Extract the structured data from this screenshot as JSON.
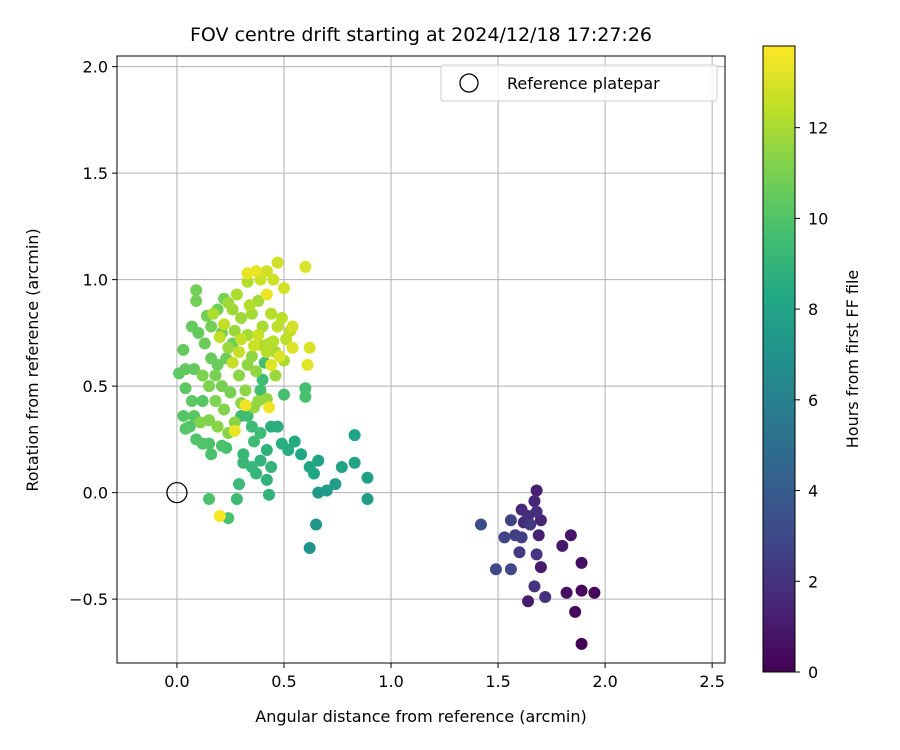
{
  "chart_data": {
    "type": "scatter",
    "title": "FOV centre drift starting at 2024/12/18 17:27:26",
    "xlabel": "Angular distance from reference (arcmin)",
    "ylabel": "Rotation from reference (arcmin)",
    "xlim": [
      -0.28,
      2.56
    ],
    "ylim": [
      -0.8,
      2.05
    ],
    "xticks": [
      0.0,
      0.5,
      1.0,
      1.5,
      2.0,
      2.5
    ],
    "xtick_labels": [
      "0.0",
      "0.5",
      "1.0",
      "1.5",
      "2.0",
      "2.5"
    ],
    "yticks": [
      -0.5,
      0.0,
      0.5,
      1.0,
      1.5,
      2.0
    ],
    "ytick_labels": [
      "−0.5",
      "0.0",
      "0.5",
      "1.0",
      "1.5",
      "2.0"
    ],
    "grid": true,
    "legend": {
      "position": "top-right",
      "entries": [
        "Reference platepar"
      ]
    },
    "reference_point": {
      "x": 0.0,
      "y": 0.0,
      "label": "Reference platepar"
    },
    "colorbar": {
      "label": "Hours from first FF file",
      "colormap": "viridis",
      "range": [
        0,
        13.8
      ],
      "ticks": [
        0,
        2,
        4,
        6,
        8,
        10,
        12
      ],
      "tick_labels": [
        "0",
        "2",
        "4",
        "6",
        "8",
        "10",
        "12"
      ]
    },
    "points": [
      {
        "x": 1.89,
        "y": -0.71,
        "h": 0.1
      },
      {
        "x": 1.95,
        "y": -0.47,
        "h": 0.2
      },
      {
        "x": 1.89,
        "y": -0.46,
        "h": 0.3
      },
      {
        "x": 1.86,
        "y": -0.56,
        "h": 0.4
      },
      {
        "x": 1.82,
        "y": -0.47,
        "h": 0.5
      },
      {
        "x": 1.89,
        "y": -0.33,
        "h": 0.6
      },
      {
        "x": 1.84,
        "y": -0.2,
        "h": 0.8
      },
      {
        "x": 1.8,
        "y": -0.25,
        "h": 0.9
      },
      {
        "x": 1.7,
        "y": -0.35,
        "h": 1.0
      },
      {
        "x": 1.64,
        "y": -0.51,
        "h": 1.1
      },
      {
        "x": 1.68,
        "y": 0.01,
        "h": 1.2
      },
      {
        "x": 1.69,
        "y": -0.2,
        "h": 1.3
      },
      {
        "x": 1.7,
        "y": -0.13,
        "h": 1.4
      },
      {
        "x": 1.67,
        "y": -0.04,
        "h": 1.5
      },
      {
        "x": 1.61,
        "y": -0.08,
        "h": 1.6
      },
      {
        "x": 1.62,
        "y": -0.14,
        "h": 1.7
      },
      {
        "x": 1.64,
        "y": -0.11,
        "h": 1.8
      },
      {
        "x": 1.68,
        "y": -0.09,
        "h": 1.9
      },
      {
        "x": 1.72,
        "y": -0.49,
        "h": 2.0
      },
      {
        "x": 1.67,
        "y": -0.44,
        "h": 2.1
      },
      {
        "x": 1.68,
        "y": -0.29,
        "h": 2.2
      },
      {
        "x": 1.65,
        "y": -0.15,
        "h": 2.3
      },
      {
        "x": 1.6,
        "y": -0.28,
        "h": 2.4
      },
      {
        "x": 1.58,
        "y": -0.2,
        "h": 2.5
      },
      {
        "x": 1.61,
        "y": -0.21,
        "h": 2.6
      },
      {
        "x": 1.56,
        "y": -0.13,
        "h": 2.7
      },
      {
        "x": 1.53,
        "y": -0.21,
        "h": 2.8
      },
      {
        "x": 1.56,
        "y": -0.36,
        "h": 2.9
      },
      {
        "x": 1.49,
        "y": -0.36,
        "h": 3.0
      },
      {
        "x": 1.42,
        "y": -0.15,
        "h": 3.2
      },
      {
        "x": 0.62,
        "y": -0.26,
        "h": 7.0
      },
      {
        "x": 0.65,
        "y": -0.15,
        "h": 7.2
      },
      {
        "x": 0.66,
        "y": 0.0,
        "h": 7.4
      },
      {
        "x": 0.7,
        "y": 0.01,
        "h": 7.5
      },
      {
        "x": 0.74,
        "y": 0.04,
        "h": 7.6
      },
      {
        "x": 0.89,
        "y": -0.03,
        "h": 7.7
      },
      {
        "x": 0.89,
        "y": 0.07,
        "h": 7.8
      },
      {
        "x": 0.83,
        "y": 0.14,
        "h": 7.9
      },
      {
        "x": 0.83,
        "y": 0.27,
        "h": 7.9
      },
      {
        "x": 0.77,
        "y": 0.12,
        "h": 8.0
      },
      {
        "x": 0.66,
        "y": 0.15,
        "h": 8.0
      },
      {
        "x": 0.62,
        "y": 0.12,
        "h": 8.1
      },
      {
        "x": 0.64,
        "y": 0.09,
        "h": 8.2
      },
      {
        "x": 0.58,
        "y": 0.18,
        "h": 8.3
      },
      {
        "x": 0.55,
        "y": 0.24,
        "h": 8.4
      },
      {
        "x": 0.52,
        "y": 0.2,
        "h": 8.5
      },
      {
        "x": 0.49,
        "y": 0.23,
        "h": 8.6
      },
      {
        "x": 0.47,
        "y": 0.31,
        "h": 8.6
      },
      {
        "x": 0.44,
        "y": 0.31,
        "h": 8.7
      },
      {
        "x": 0.42,
        "y": 0.2,
        "h": 8.8
      },
      {
        "x": 0.42,
        "y": 0.06,
        "h": 8.9
      },
      {
        "x": 0.43,
        "y": -0.01,
        "h": 8.9
      },
      {
        "x": 0.44,
        "y": 0.12,
        "h": 9.0
      },
      {
        "x": 0.39,
        "y": 0.15,
        "h": 9.0
      },
      {
        "x": 0.37,
        "y": 0.09,
        "h": 9.1
      },
      {
        "x": 0.35,
        "y": 0.12,
        "h": 9.1
      },
      {
        "x": 0.31,
        "y": 0.14,
        "h": 9.2
      },
      {
        "x": 0.31,
        "y": 0.18,
        "h": 9.2
      },
      {
        "x": 0.29,
        "y": 0.04,
        "h": 9.3
      },
      {
        "x": 0.28,
        "y": -0.03,
        "h": 9.3
      },
      {
        "x": 0.36,
        "y": 0.24,
        "h": 9.4
      },
      {
        "x": 0.39,
        "y": 0.28,
        "h": 9.4
      },
      {
        "x": 0.35,
        "y": 0.31,
        "h": 9.4
      },
      {
        "x": 0.33,
        "y": 0.36,
        "h": 9.5
      },
      {
        "x": 0.3,
        "y": 0.36,
        "h": 9.5
      },
      {
        "x": 0.4,
        "y": 0.53,
        "h": 9.5
      },
      {
        "x": 0.41,
        "y": 0.61,
        "h": 9.6
      },
      {
        "x": 0.39,
        "y": 0.48,
        "h": 9.6
      },
      {
        "x": 0.6,
        "y": 0.49,
        "h": 9.6
      },
      {
        "x": 0.6,
        "y": 0.45,
        "h": 9.7
      },
      {
        "x": 0.5,
        "y": 0.46,
        "h": 9.7
      },
      {
        "x": 0.23,
        "y": 0.21,
        "h": 9.7
      },
      {
        "x": 0.24,
        "y": -0.12,
        "h": 9.8
      },
      {
        "x": 0.21,
        "y": 0.22,
        "h": 9.8
      },
      {
        "x": 0.16,
        "y": 0.18,
        "h": 9.8
      },
      {
        "x": 0.15,
        "y": -0.03,
        "h": 9.9
      },
      {
        "x": 0.15,
        "y": 0.23,
        "h": 9.9
      },
      {
        "x": 0.12,
        "y": 0.23,
        "h": 10.0
      },
      {
        "x": 0.09,
        "y": 0.25,
        "h": 10.0
      },
      {
        "x": 0.06,
        "y": 0.31,
        "h": 10.0
      },
      {
        "x": 0.04,
        "y": 0.3,
        "h": 10.1
      },
      {
        "x": 0.03,
        "y": 0.36,
        "h": 10.1
      },
      {
        "x": 0.08,
        "y": 0.36,
        "h": 10.2
      },
      {
        "x": 0.12,
        "y": 0.43,
        "h": 10.2
      },
      {
        "x": 0.07,
        "y": 0.43,
        "h": 10.3
      },
      {
        "x": 0.04,
        "y": 0.49,
        "h": 10.3
      },
      {
        "x": 0.01,
        "y": 0.56,
        "h": 10.3
      },
      {
        "x": 0.04,
        "y": 0.58,
        "h": 10.4
      },
      {
        "x": 0.08,
        "y": 0.58,
        "h": 10.4
      },
      {
        "x": 0.03,
        "y": 0.67,
        "h": 10.5
      },
      {
        "x": 0.07,
        "y": 0.78,
        "h": 10.5
      },
      {
        "x": 0.1,
        "y": 0.75,
        "h": 10.5
      },
      {
        "x": 0.13,
        "y": 0.7,
        "h": 10.6
      },
      {
        "x": 0.16,
        "y": 0.63,
        "h": 10.6
      },
      {
        "x": 0.19,
        "y": 0.6,
        "h": 10.6
      },
      {
        "x": 0.23,
        "y": 0.63,
        "h": 10.7
      },
      {
        "x": 0.26,
        "y": 0.7,
        "h": 10.7
      },
      {
        "x": 0.21,
        "y": 0.75,
        "h": 10.7
      },
      {
        "x": 0.16,
        "y": 0.78,
        "h": 10.8
      },
      {
        "x": 0.14,
        "y": 0.83,
        "h": 10.8
      },
      {
        "x": 0.19,
        "y": 0.86,
        "h": 10.8
      },
      {
        "x": 0.22,
        "y": 0.91,
        "h": 10.9
      },
      {
        "x": 0.09,
        "y": 0.9,
        "h": 10.9
      },
      {
        "x": 0.09,
        "y": 0.95,
        "h": 10.9
      },
      {
        "x": 0.18,
        "y": 0.55,
        "h": 11.0
      },
      {
        "x": 0.21,
        "y": 0.5,
        "h": 11.0
      },
      {
        "x": 0.25,
        "y": 0.47,
        "h": 11.0
      },
      {
        "x": 0.15,
        "y": 0.5,
        "h": 11.1
      },
      {
        "x": 0.12,
        "y": 0.55,
        "h": 11.1
      },
      {
        "x": 0.18,
        "y": 0.43,
        "h": 11.1
      },
      {
        "x": 0.22,
        "y": 0.39,
        "h": 11.2
      },
      {
        "x": 0.15,
        "y": 0.34,
        "h": 11.2
      },
      {
        "x": 0.11,
        "y": 0.33,
        "h": 11.2
      },
      {
        "x": 0.19,
        "y": 0.31,
        "h": 11.3
      },
      {
        "x": 0.24,
        "y": 0.28,
        "h": 11.3
      },
      {
        "x": 0.27,
        "y": 0.33,
        "h": 11.3
      },
      {
        "x": 0.3,
        "y": 0.42,
        "h": 11.4
      },
      {
        "x": 0.32,
        "y": 0.48,
        "h": 11.4
      },
      {
        "x": 0.29,
        "y": 0.55,
        "h": 11.4
      },
      {
        "x": 0.33,
        "y": 0.6,
        "h": 11.5
      },
      {
        "x": 0.35,
        "y": 0.64,
        "h": 11.5
      },
      {
        "x": 0.37,
        "y": 0.57,
        "h": 11.5
      },
      {
        "x": 0.38,
        "y": 0.43,
        "h": 11.6
      },
      {
        "x": 0.36,
        "y": 0.4,
        "h": 11.6
      },
      {
        "x": 0.42,
        "y": 0.44,
        "h": 11.6
      },
      {
        "x": 0.46,
        "y": 0.55,
        "h": 11.7
      },
      {
        "x": 0.24,
        "y": 0.68,
        "h": 11.7
      },
      {
        "x": 0.27,
        "y": 0.76,
        "h": 11.7
      },
      {
        "x": 0.3,
        "y": 0.82,
        "h": 11.8
      },
      {
        "x": 0.26,
        "y": 0.86,
        "h": 11.8
      },
      {
        "x": 0.24,
        "y": 0.89,
        "h": 11.8
      },
      {
        "x": 0.33,
        "y": 0.74,
        "h": 11.9
      },
      {
        "x": 0.35,
        "y": 0.84,
        "h": 11.9
      },
      {
        "x": 0.38,
        "y": 0.9,
        "h": 11.9
      },
      {
        "x": 0.4,
        "y": 0.78,
        "h": 12.0
      },
      {
        "x": 0.43,
        "y": 0.7,
        "h": 12.0
      },
      {
        "x": 0.46,
        "y": 0.66,
        "h": 12.0
      },
      {
        "x": 0.5,
        "y": 0.62,
        "h": 12.1
      },
      {
        "x": 0.17,
        "y": 0.84,
        "h": 12.1
      },
      {
        "x": 0.28,
        "y": 0.93,
        "h": 12.1
      },
      {
        "x": 0.33,
        "y": 0.99,
        "h": 12.2
      },
      {
        "x": 0.34,
        "y": 0.88,
        "h": 12.2
      },
      {
        "x": 0.4,
        "y": 0.69,
        "h": 12.2
      },
      {
        "x": 0.42,
        "y": 0.66,
        "h": 12.3
      },
      {
        "x": 0.45,
        "y": 0.71,
        "h": 12.3
      },
      {
        "x": 0.44,
        "y": 0.84,
        "h": 12.3
      },
      {
        "x": 0.47,
        "y": 0.78,
        "h": 12.4
      },
      {
        "x": 0.49,
        "y": 0.82,
        "h": 12.4
      },
      {
        "x": 0.51,
        "y": 0.72,
        "h": 12.4
      },
      {
        "x": 0.53,
        "y": 0.76,
        "h": 12.5
      },
      {
        "x": 0.2,
        "y": 0.73,
        "h": 12.5
      },
      {
        "x": 0.22,
        "y": 0.79,
        "h": 12.5
      },
      {
        "x": 0.26,
        "y": 0.61,
        "h": 12.6
      },
      {
        "x": 0.29,
        "y": 0.66,
        "h": 12.6
      },
      {
        "x": 0.3,
        "y": 0.72,
        "h": 12.6
      },
      {
        "x": 0.36,
        "y": 0.69,
        "h": 12.7
      },
      {
        "x": 0.38,
        "y": 0.74,
        "h": 12.7
      },
      {
        "x": 0.39,
        "y": 1.0,
        "h": 12.7
      },
      {
        "x": 0.42,
        "y": 1.04,
        "h": 12.8
      },
      {
        "x": 0.45,
        "y": 1.0,
        "h": 12.8
      },
      {
        "x": 0.47,
        "y": 1.08,
        "h": 12.8
      },
      {
        "x": 0.5,
        "y": 0.96,
        "h": 12.9
      },
      {
        "x": 0.54,
        "y": 0.78,
        "h": 12.9
      },
      {
        "x": 0.6,
        "y": 1.06,
        "h": 13.0
      },
      {
        "x": 0.62,
        "y": 0.68,
        "h": 13.0
      },
      {
        "x": 0.54,
        "y": 0.68,
        "h": 13.1
      },
      {
        "x": 0.48,
        "y": 0.64,
        "h": 13.1
      },
      {
        "x": 0.44,
        "y": 0.6,
        "h": 13.2
      },
      {
        "x": 0.61,
        "y": 0.6,
        "h": 13.2
      },
      {
        "x": 0.33,
        "y": 1.03,
        "h": 13.3
      },
      {
        "x": 0.37,
        "y": 1.04,
        "h": 13.3
      },
      {
        "x": 0.42,
        "y": 0.93,
        "h": 13.4
      },
      {
        "x": 0.27,
        "y": 0.29,
        "h": 13.4
      },
      {
        "x": 0.43,
        "y": 0.4,
        "h": 13.5
      },
      {
        "x": 0.32,
        "y": 0.41,
        "h": 13.5
      },
      {
        "x": 0.2,
        "y": -0.11,
        "h": 13.7
      }
    ]
  }
}
